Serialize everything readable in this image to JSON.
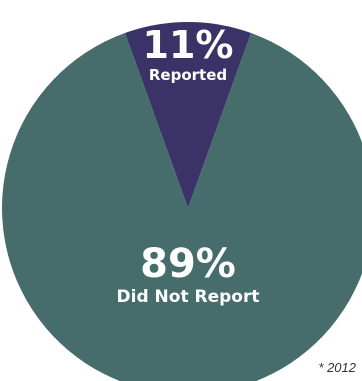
{
  "chart_data": {
    "type": "pie",
    "slices": [
      {
        "label": "Reported",
        "value": 11,
        "value_text": "11%",
        "color": "#3b3268"
      },
      {
        "label": "Did Not Report",
        "value": 89,
        "value_text": "89%",
        "color": "#466c6c"
      }
    ]
  },
  "footnote": "* 2012"
}
